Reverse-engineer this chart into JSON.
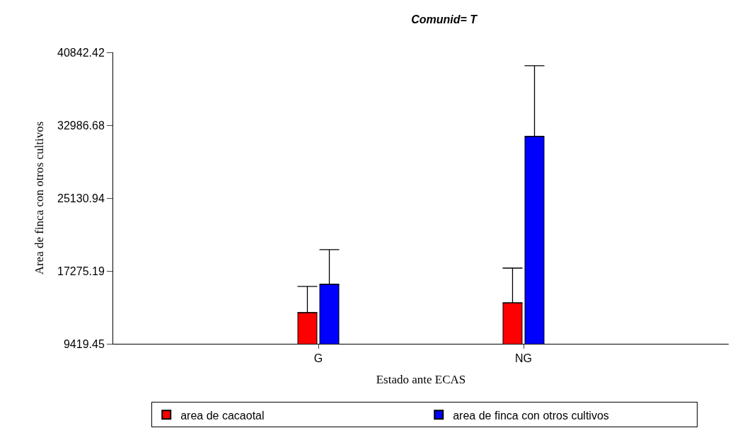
{
  "chart_data": {
    "type": "bar",
    "title": "Comunid= T",
    "xlabel": "Estado ante ECAS",
    "ylabel": "Area de finca con otros cultivos",
    "categories": [
      "G",
      "NG"
    ],
    "series": [
      {
        "name": "area de cacaotal",
        "color": "#ff0000",
        "values": [
          12780,
          13840
        ],
        "errors": [
          [
            12780,
            15600
          ],
          [
            13840,
            17580
          ]
        ]
      },
      {
        "name": "area de finca con otros cultivos",
        "color": "#0000ff",
        "values": [
          15830,
          31780
        ],
        "errors": [
          [
            15830,
            19570
          ],
          [
            31780,
            39400
          ]
        ]
      }
    ],
    "ylim": [
      9419.45,
      40842.42
    ],
    "yticks": [
      9419.45,
      17275.19,
      25130.94,
      32986.68,
      40842.42
    ],
    "legend": "bottom"
  }
}
